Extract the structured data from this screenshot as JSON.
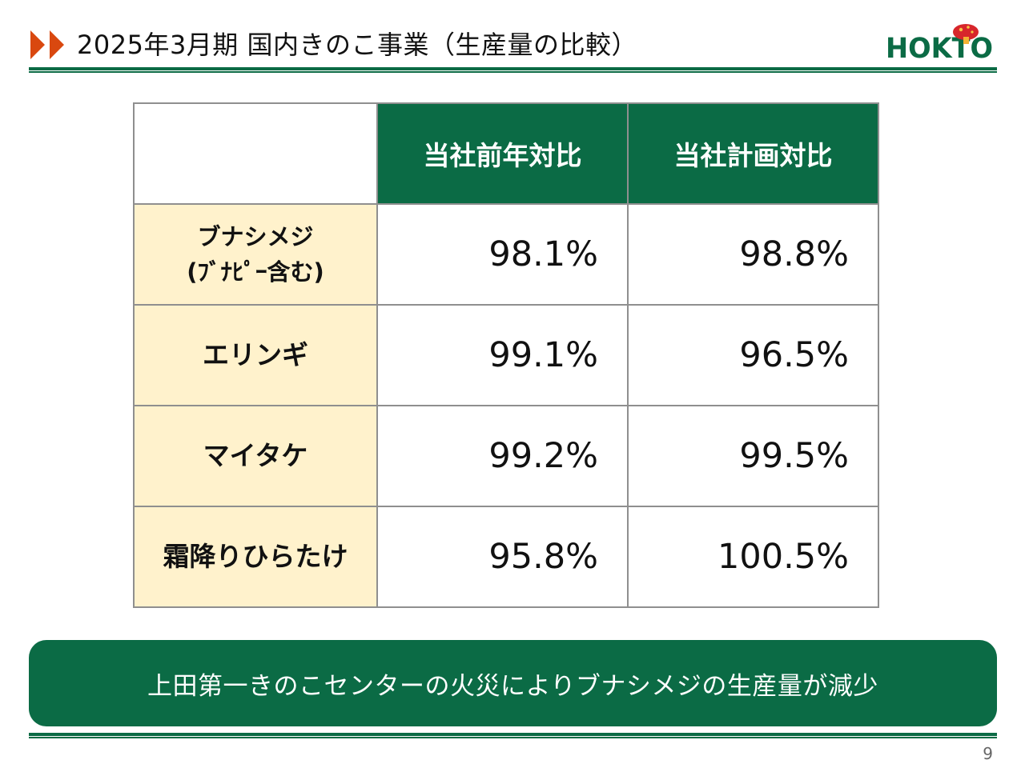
{
  "header": {
    "title": "2025年3月期 国内きのこ事業（生産量の比較）",
    "arrow_color": "#d9480f",
    "accent_color": "#0b6b45"
  },
  "logo": {
    "text": "HOKTO",
    "icon": "mushroom-logo-icon"
  },
  "table": {
    "columns": [
      "当社前年対比",
      "当社計画対比"
    ],
    "rows": [
      {
        "label_line1": "ブナシメジ",
        "label_line2": "(ﾌﾞﾅﾋﾟｰ含む)",
        "vs_prev_year": "98.1%",
        "vs_plan": "98.8%"
      },
      {
        "label": "エリンギ",
        "vs_prev_year": "99.1%",
        "vs_plan": "96.5%"
      },
      {
        "label": "マイタケ",
        "vs_prev_year": "99.2%",
        "vs_plan": "99.5%"
      },
      {
        "label": "霜降りひらたけ",
        "vs_prev_year": "95.8%",
        "vs_plan": "100.5%"
      }
    ],
    "header_bg": "#0b6b45",
    "label_bg": "#fff2cc"
  },
  "banner": {
    "text": "上田第一きのこセンターの火災によりブナシメジの生産量が減少"
  },
  "footer": {
    "page_number": "9"
  }
}
